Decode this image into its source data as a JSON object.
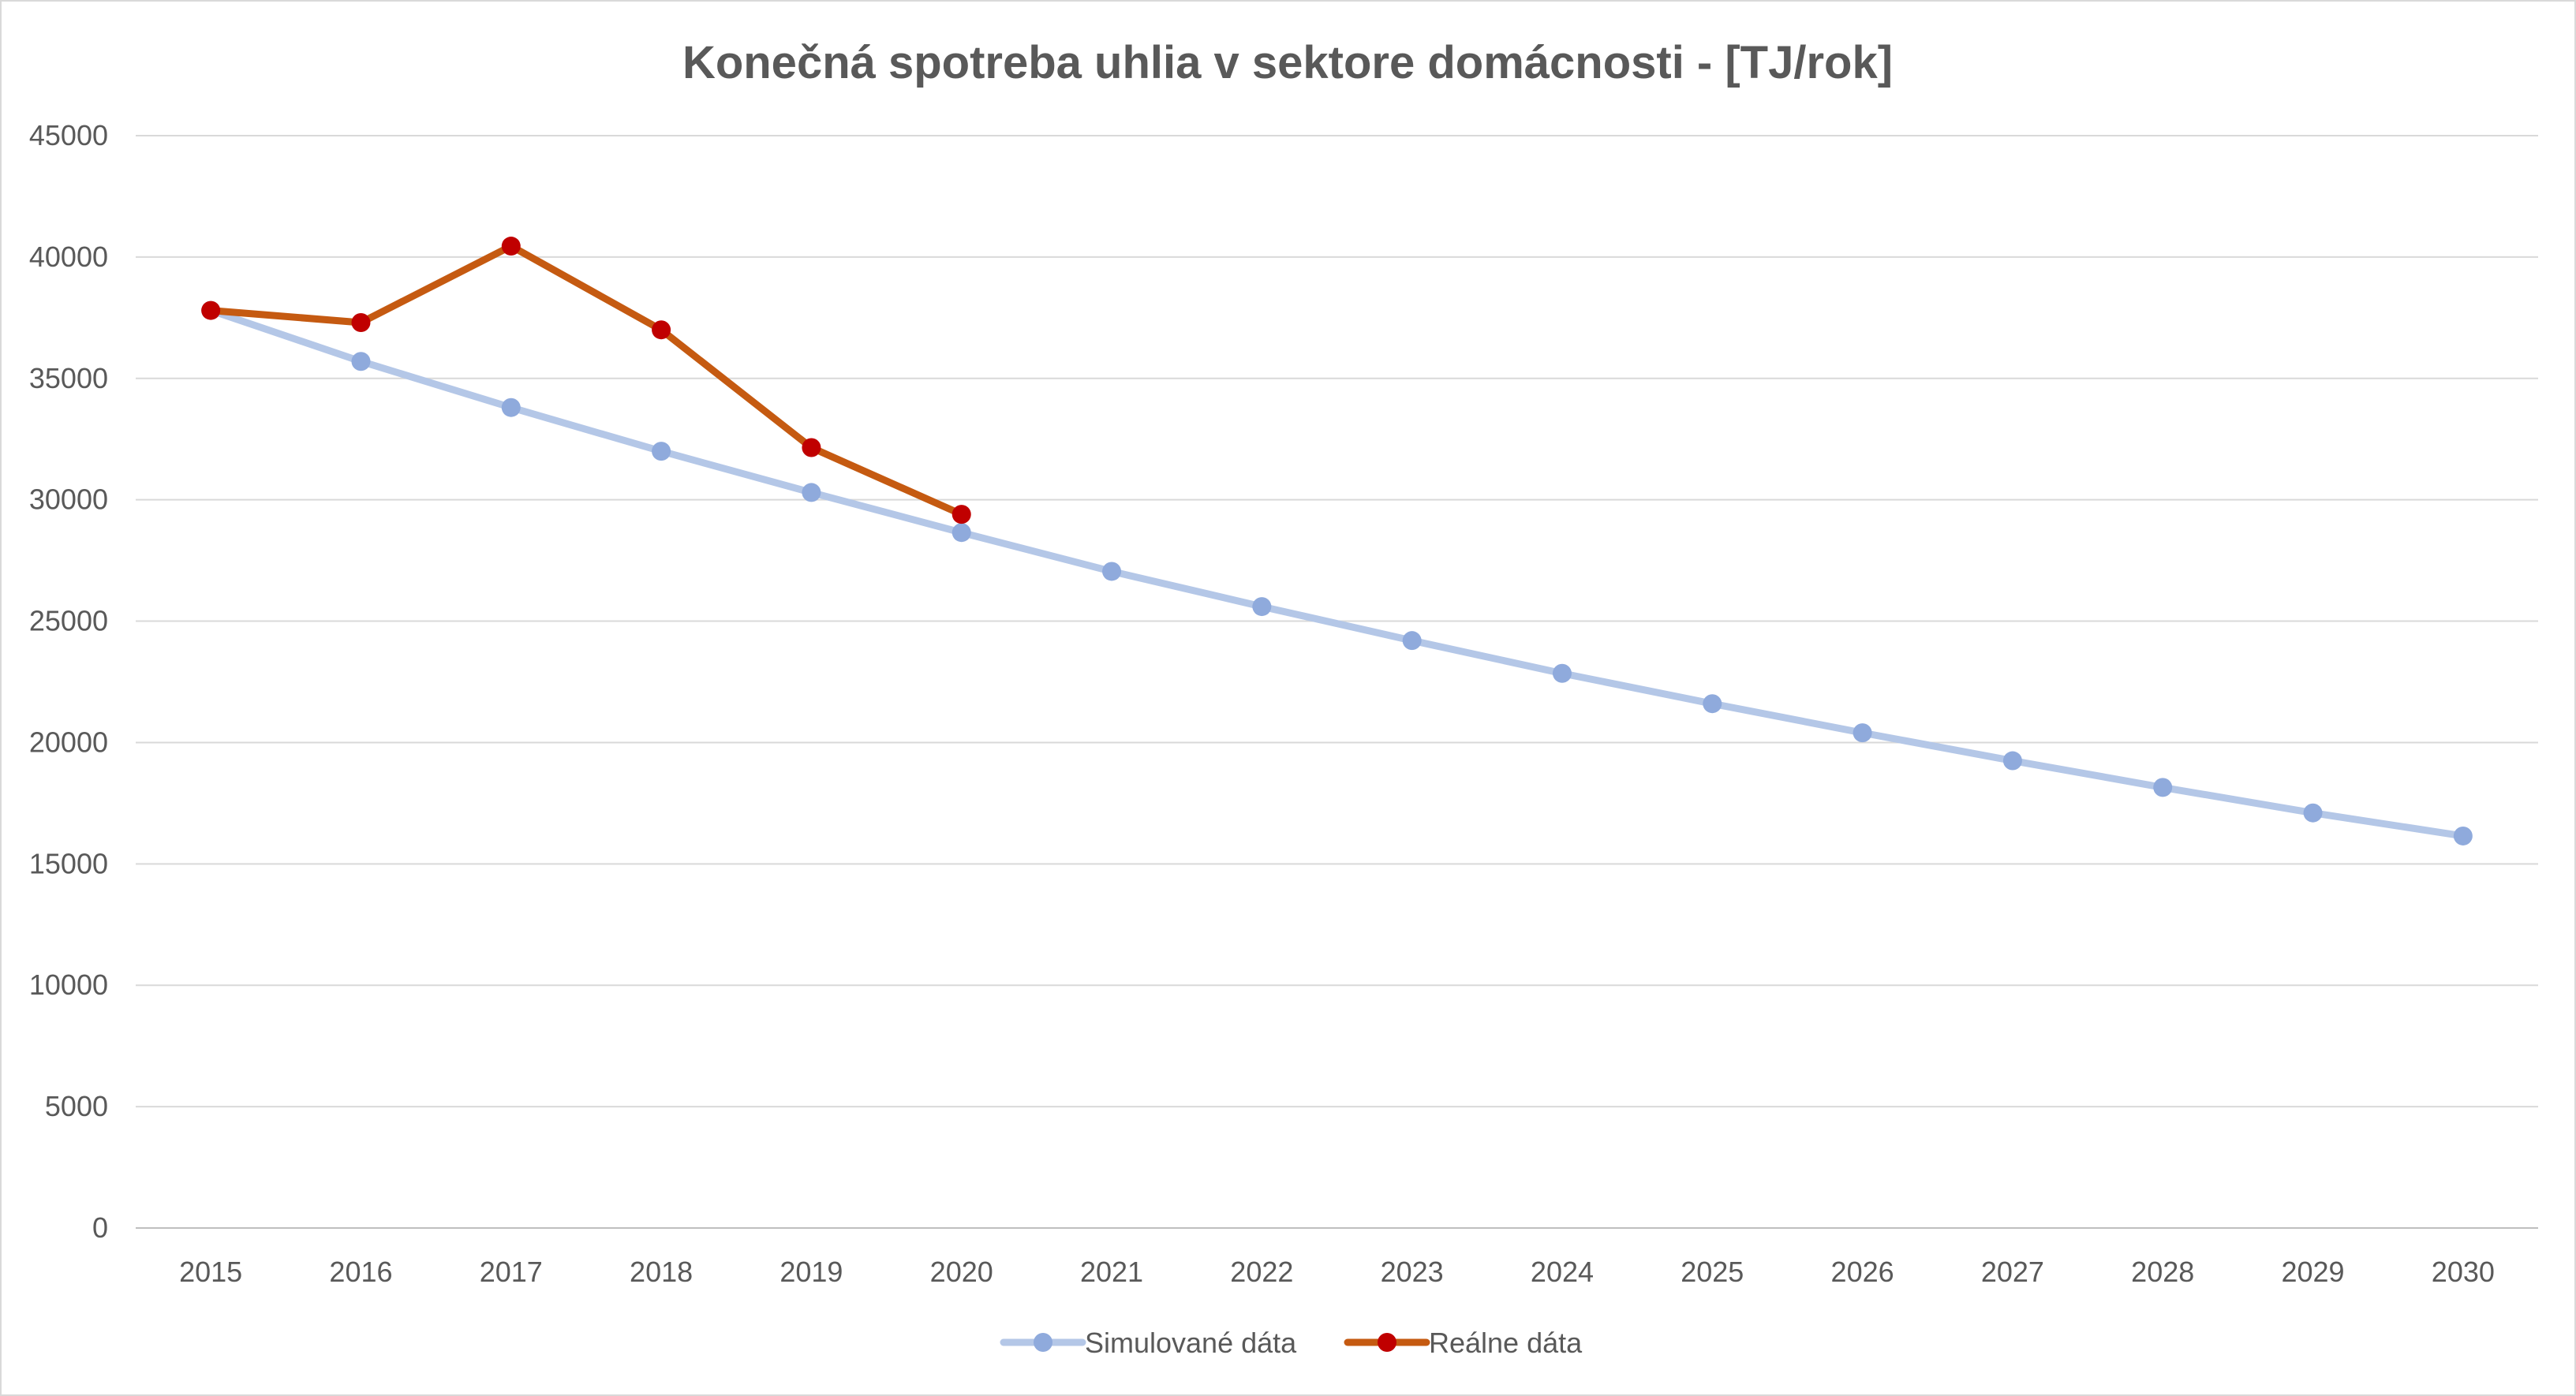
{
  "chart_data": {
    "type": "line",
    "title": "Konečná spotreba  uhlia v sektore domácnosti - [TJ/rok]",
    "xlabel": "",
    "ylabel": "",
    "ylim": [
      0,
      45000
    ],
    "y_ticks": [
      0,
      5000,
      10000,
      15000,
      20000,
      25000,
      30000,
      35000,
      40000,
      45000
    ],
    "grid": true,
    "legend_position": "bottom",
    "categories": [
      "2015",
      "2016",
      "2017",
      "2018",
      "2019",
      "2020",
      "2021",
      "2022",
      "2023",
      "2024",
      "2025",
      "2026",
      "2027",
      "2028",
      "2029",
      "2030"
    ],
    "series": [
      {
        "name": "Simulované dáta",
        "color": "#b4c7e7",
        "marker_color": "#8faadc",
        "values": [
          37800,
          35700,
          33800,
          32000,
          30300,
          28650,
          27050,
          25600,
          24200,
          22850,
          21600,
          20400,
          19250,
          18150,
          17100,
          16150
        ]
      },
      {
        "name": "Reálne dáta",
        "color": "#c55a11",
        "marker_color": "#c00000",
        "values": [
          37800,
          37300,
          40450,
          37000,
          32150,
          29400,
          null,
          null,
          null,
          null,
          null,
          null,
          null,
          null,
          null,
          null
        ]
      }
    ]
  }
}
